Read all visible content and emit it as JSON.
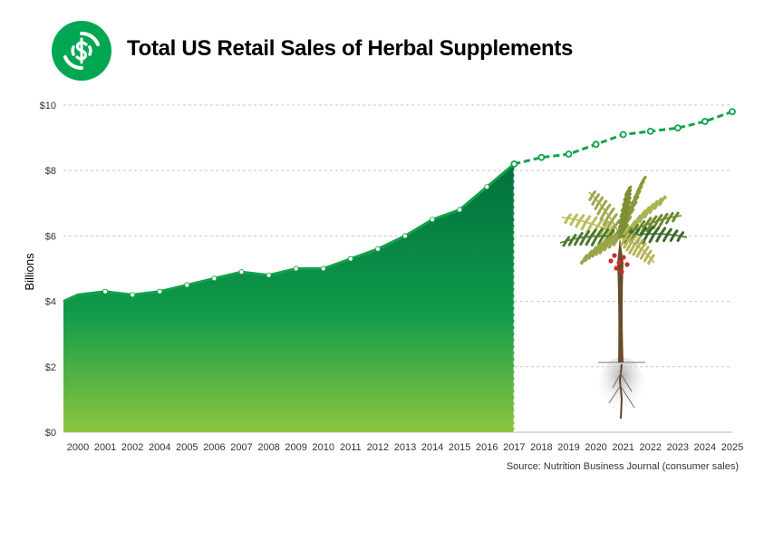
{
  "header": {
    "title": "Total US Retail Sales of Herbal Supplements",
    "logo_icon": "dollar-cycle-icon"
  },
  "colors": {
    "brand_green": "#00a651",
    "area_top": "#00703c",
    "area_mid": "#0f9a4a",
    "area_bottom": "#8cc63f",
    "line": "#13a24b"
  },
  "chart_data": {
    "type": "area",
    "title": "Total US Retail Sales of Herbal Supplements",
    "ylabel": "Billions",
    "xlabel": "",
    "source": "Source: Nutrition  Business  Journal (consumer sales)",
    "ylim": [
      0,
      10
    ],
    "yticks": [
      "$0",
      "$2",
      "$4",
      "$6",
      "$8",
      "$10"
    ],
    "ytick_values": [
      0,
      2,
      4,
      6,
      8,
      10
    ],
    "grid": "horizontal dashed",
    "x_labels": [
      "2000",
      "2001",
      "2002",
      "2004",
      "2005",
      "2006",
      "2007",
      "2008",
      "2009",
      "2010",
      "2011",
      "2012",
      "2013",
      "2014",
      "2015",
      "2016",
      "2017",
      "2018",
      "2019",
      "2020",
      "2021",
      "2022",
      "2023",
      "2024",
      "2025"
    ],
    "series": [
      {
        "style": "solid area",
        "x": [
          "2000",
          "2001",
          "2002",
          "2004",
          "2005",
          "2006",
          "2007",
          "2008",
          "2009",
          "2010",
          "2011",
          "2012",
          "2013",
          "2014",
          "2015",
          "2016",
          "2017"
        ],
        "values": [
          4.2,
          4.3,
          4.2,
          4.3,
          4.5,
          4.7,
          4.9,
          4.8,
          5.0,
          5.0,
          5.3,
          5.6,
          6.0,
          6.5,
          6.8,
          7.5,
          8.2
        ]
      },
      {
        "style": "dashed projection",
        "x": [
          "2017",
          "2018",
          "2019",
          "2020",
          "2021",
          "2022",
          "2023",
          "2024",
          "2025"
        ],
        "values": [
          8.2,
          8.4,
          8.5,
          8.8,
          9.1,
          9.2,
          9.3,
          9.5,
          9.8
        ]
      }
    ],
    "area_start_value": 4.0,
    "illustration": "palm-tree-icon"
  }
}
